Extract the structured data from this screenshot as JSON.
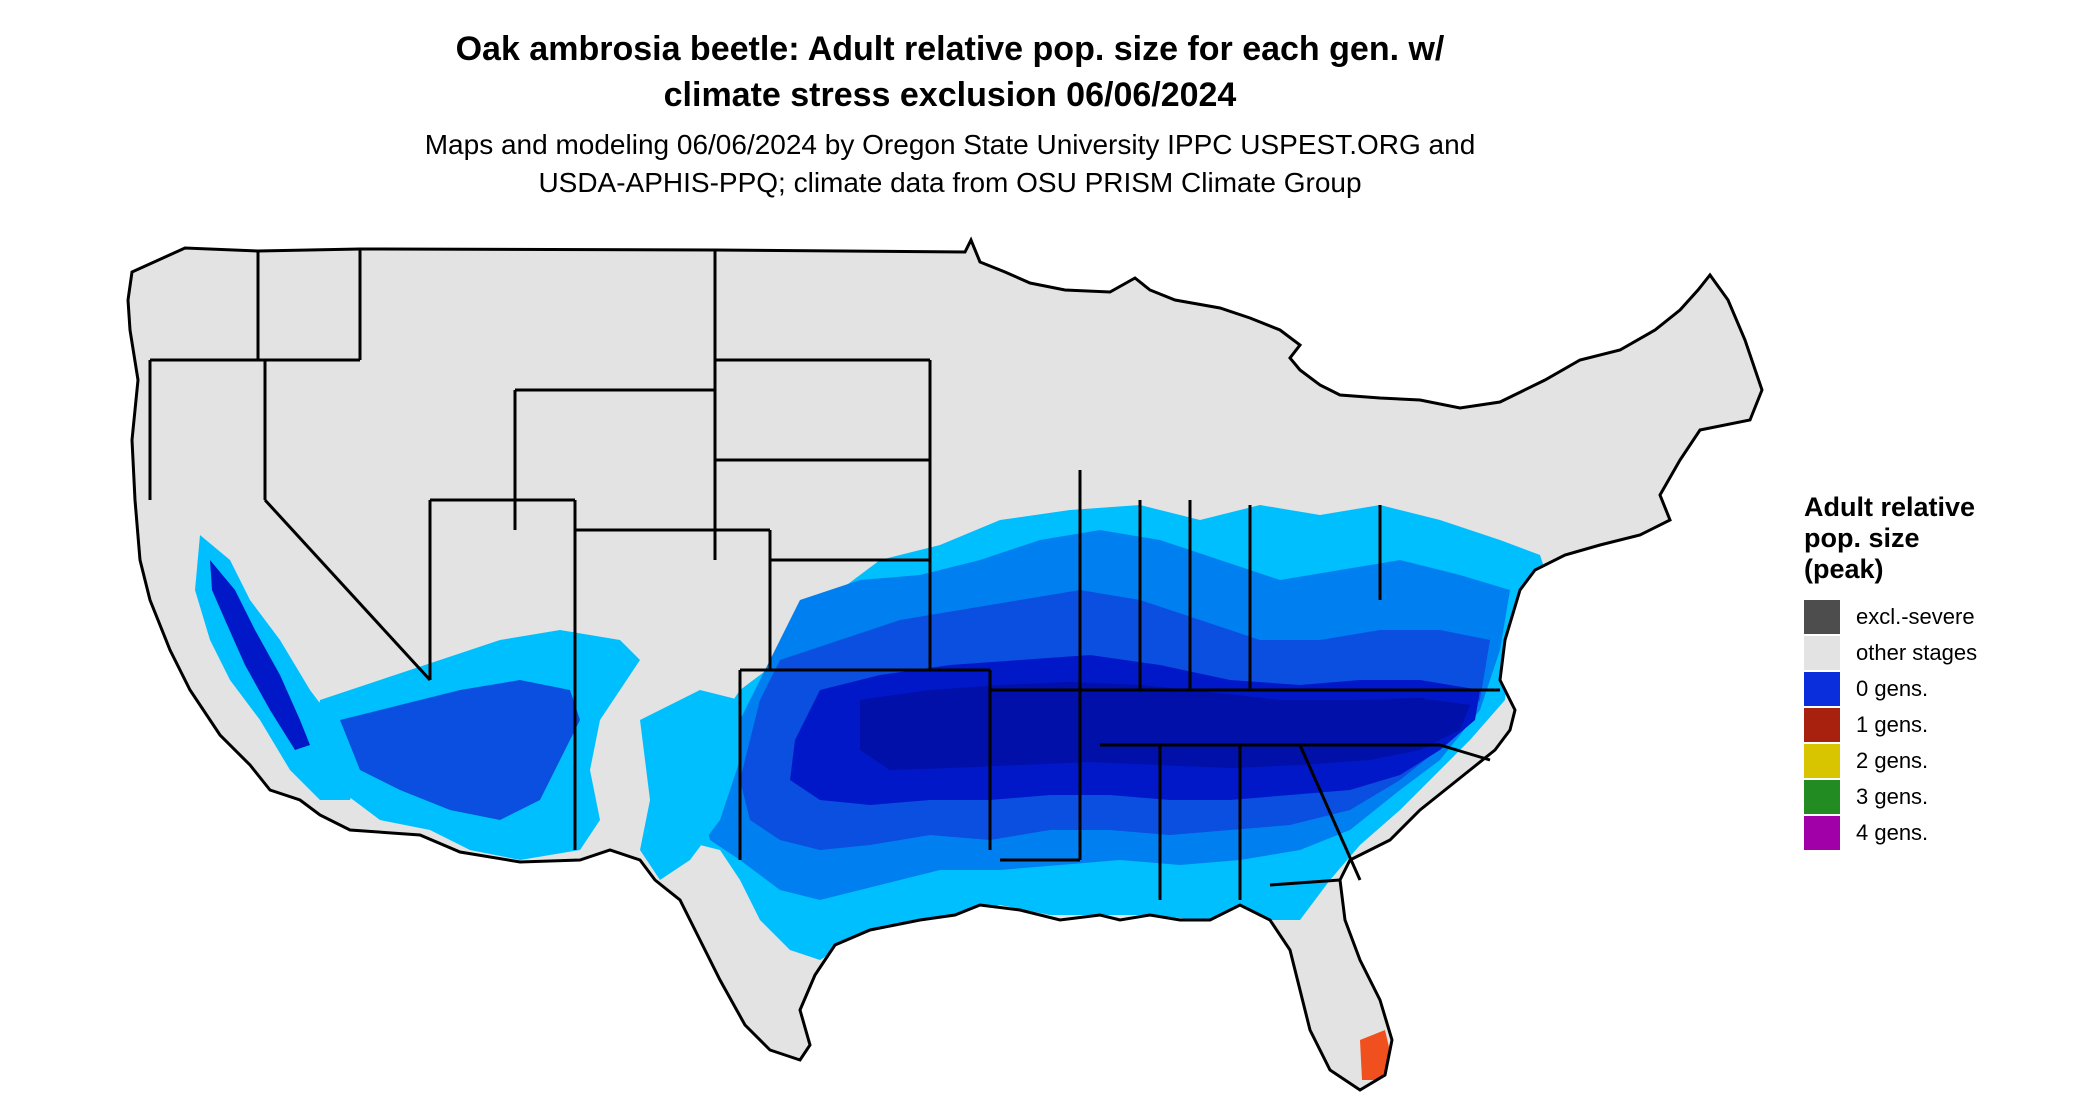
{
  "header": {
    "title_line1": "Oak ambrosia beetle: Adult relative pop. size for each gen. w/",
    "title_line2": "climate stress exclusion 06/06/2024",
    "subtitle_line1": "Maps and modeling 06/06/2024 by Oregon State University IPPC USPEST.ORG and",
    "subtitle_line2": "USDA-APHIS-PPQ; climate data from OSU PRISM Climate Group"
  },
  "legend": {
    "title_line1": "Adult relative",
    "title_line2": "pop. size",
    "title_line3": "(peak)",
    "items": [
      {
        "label": "excl.-severe",
        "color": "#4d4d4d"
      },
      {
        "label": "other stages",
        "color": "#e3e3e3"
      },
      {
        "label": "0 gens.",
        "color": "#0a2edc"
      },
      {
        "label": "1 gens.",
        "color": "#a8210f"
      },
      {
        "label": "2 gens.",
        "color": "#d9c400"
      },
      {
        "label": "3 gens.",
        "color": "#228b22"
      },
      {
        "label": "4 gens.",
        "color": "#a100a8"
      }
    ]
  },
  "map": {
    "base_color": "#e3e3e3",
    "shade_colors": {
      "lightest": "#00bfff",
      "light": "#007ff0",
      "medium": "#0a4fe0",
      "dark": "#0018c8",
      "darkest": "#0010a8"
    },
    "gen1_color": "#f0501e",
    "gen1_dark_color": "#8b1a0f"
  }
}
